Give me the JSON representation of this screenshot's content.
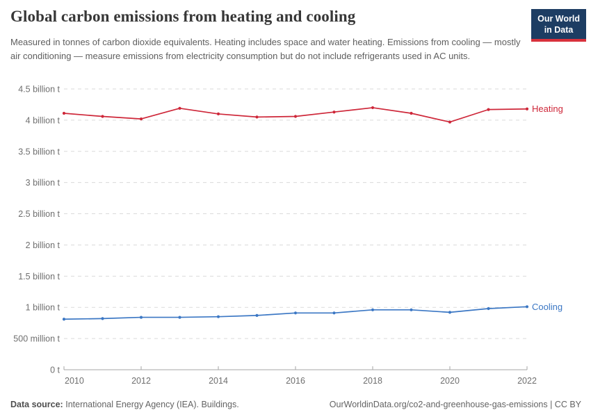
{
  "header": {
    "title": "Global carbon emissions from heating and cooling",
    "subtitle": "Measured in tonnes of carbon dioxide equivalents. Heating includes space and water heating. Emissions from cooling — mostly air conditioning — measure emissions from electricity consumption but do not include refrigerants used in AC units.",
    "logo": {
      "line1": "Our World",
      "line2": "in Data"
    }
  },
  "chart_data": {
    "type": "line",
    "title": "Global carbon emissions from heating and cooling",
    "x": [
      2010,
      2011,
      2012,
      2013,
      2014,
      2015,
      2016,
      2017,
      2018,
      2019,
      2020,
      2021,
      2022
    ],
    "series": [
      {
        "name": "Heating",
        "color": "#ce2739",
        "values": [
          4.11,
          4.06,
          4.02,
          4.19,
          4.1,
          4.05,
          4.06,
          4.13,
          4.2,
          4.11,
          3.97,
          4.17,
          4.18
        ]
      },
      {
        "name": "Cooling",
        "color": "#3b77c4",
        "values": [
          0.81,
          0.82,
          0.84,
          0.84,
          0.85,
          0.87,
          0.91,
          0.91,
          0.96,
          0.96,
          0.92,
          0.98,
          1.01
        ]
      }
    ],
    "unit_scale": "billion t",
    "ylim": [
      0,
      4.5
    ],
    "ytick_labels": [
      "0 t",
      "500 million t",
      "1 billion t",
      "1.5 billion t",
      "2 billion t",
      "2.5 billion t",
      "3 billion t",
      "3.5 billion t",
      "4 billion t",
      "4.5 billion t"
    ],
    "xtick_labels": [
      "2010",
      "2012",
      "2014",
      "2016",
      "2018",
      "2020",
      "2022"
    ],
    "grid": "horizontal-dashed",
    "legend": "series-end-labels"
  },
  "footer": {
    "source_label": "Data source:",
    "source_text": "International Energy Agency (IEA). Buildings.",
    "url_text": "OurWorldinData.org/co2-and-greenhouse-gas-emissions | CC BY"
  },
  "colors": {
    "heating": "#ce2739",
    "cooling": "#3b77c4",
    "grid": "#dadada",
    "axis": "#a5a5a5",
    "tick_label": "#6f6f6f"
  }
}
